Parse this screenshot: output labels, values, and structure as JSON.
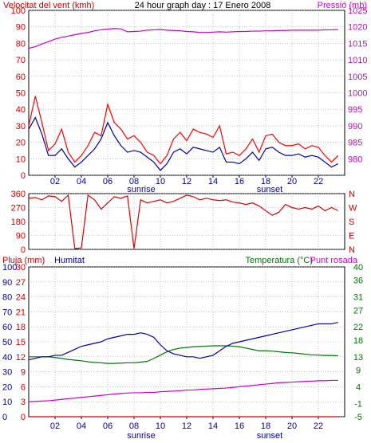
{
  "header": {
    "left_title": "Velocitat del vent (kmh)",
    "center_title": "24 hour graph day : 17 Enero 2008",
    "right_title": "Pressió (mb)"
  },
  "colors": {
    "panel_bg": "#ffffff",
    "border": "#000000",
    "grid": "#a0a0a0",
    "wind_avg": "#0000aa",
    "wind_gust": "#ff0000",
    "pressure": "#cc00cc",
    "direction": "#dd0000",
    "humidity": "#0000aa",
    "temperature": "#007700",
    "dewpoint": "#cc00cc",
    "rain": "#cc0000",
    "left_axis_text": "#cc0000",
    "right_axis_text": "#cc00cc",
    "humidity_text": "#0000aa",
    "temperature_text": "#007700"
  },
  "x_axis": {
    "tick_labels": [
      "02",
      "04",
      "06",
      "08",
      "10",
      "12",
      "14",
      "16",
      "18",
      "20",
      "22"
    ],
    "sunrise_label": "sunrise",
    "sunset_label": "sunset"
  },
  "chart_data": [
    {
      "type": "line",
      "title": "",
      "ylabel": "Velocitat del vent (kmh)",
      "y2label": "Pressió (mb)",
      "ylim": [
        0,
        100
      ],
      "y2lim": [
        975,
        1025
      ],
      "yticks": [
        0,
        10,
        20,
        30,
        40,
        50,
        60,
        70,
        80,
        90,
        100
      ],
      "y2ticks": [
        980,
        985,
        990,
        995,
        1000,
        1005,
        1010,
        1015,
        1020,
        1025
      ],
      "x": [
        0.0,
        0.5,
        1.0,
        1.5,
        2.0,
        2.5,
        3.0,
        3.5,
        4.0,
        4.5,
        5.0,
        5.5,
        6.0,
        6.5,
        7.0,
        7.5,
        8.0,
        8.5,
        9.0,
        9.5,
        10.0,
        10.5,
        11.0,
        11.5,
        12.0,
        12.5,
        13.0,
        13.5,
        14.0,
        14.5,
        15.0,
        15.5,
        16.0,
        16.5,
        17.0,
        17.5,
        18.0,
        18.5,
        19.0,
        19.5,
        20.0,
        20.5,
        21.0,
        21.5,
        22.0,
        22.5,
        23.0,
        23.5
      ],
      "series": [
        {
          "name": "gust",
          "axis": "left",
          "values": [
            30,
            48,
            32,
            15,
            19,
            28,
            14,
            8,
            12,
            18,
            26,
            24,
            43,
            32,
            28,
            22,
            24,
            20,
            14,
            12,
            7,
            12,
            22,
            26,
            21,
            28,
            26,
            25,
            23,
            30,
            13,
            14,
            12,
            16,
            22,
            14,
            24,
            25,
            20,
            18,
            18,
            19,
            16,
            18,
            17,
            12,
            8,
            12
          ]
        },
        {
          "name": "average",
          "axis": "left",
          "values": [
            28,
            35,
            25,
            12,
            12,
            16,
            10,
            5,
            8,
            12,
            16,
            22,
            32,
            24,
            18,
            14,
            15,
            14,
            11,
            8,
            3,
            7,
            14,
            16,
            13,
            17,
            16,
            15,
            14,
            17,
            8,
            8,
            7,
            10,
            14,
            9,
            16,
            17,
            14,
            12,
            12,
            13,
            11,
            12,
            11,
            8,
            5,
            7
          ]
        },
        {
          "name": "pressure",
          "axis": "right",
          "values": [
            1013.5,
            1014,
            1014.8,
            1015.5,
            1016.3,
            1016.8,
            1017.2,
            1017.6,
            1018.0,
            1018.3,
            1018.8,
            1019.1,
            1019.3,
            1019.5,
            1019.4,
            1018.5,
            1018.6,
            1018.7,
            1019.0,
            1019.1,
            1019.2,
            1019.0,
            1018.9,
            1018.8,
            1018.6,
            1018.5,
            1018.3,
            1018.3,
            1018.4,
            1018.5,
            1018.4,
            1018.5,
            1018.6,
            1018.6,
            1018.7,
            1018.7,
            1018.8,
            1018.8,
            1018.9,
            1018.9,
            1019.0,
            1019.0,
            1019.0,
            1019.0,
            1019.0,
            1019.1,
            1019.1,
            1019.2
          ]
        }
      ]
    },
    {
      "type": "line",
      "title": "",
      "ylabel": "",
      "ylim": [
        0,
        360
      ],
      "yticks": [
        0,
        90,
        180,
        270,
        360
      ],
      "y2ticks": [
        "N",
        "E",
        "S",
        "W",
        "N"
      ],
      "x": [
        0.0,
        0.5,
        1.0,
        1.5,
        2.0,
        2.5,
        3.0,
        3.5,
        4.0,
        4.5,
        5.0,
        5.5,
        6.0,
        6.5,
        7.0,
        7.5,
        8.0,
        8.5,
        9.0,
        9.5,
        10.0,
        10.5,
        11.0,
        11.5,
        12.0,
        12.5,
        13.0,
        13.5,
        14.0,
        14.5,
        15.0,
        15.5,
        16.0,
        16.5,
        17.0,
        17.5,
        18.0,
        18.5,
        19.0,
        19.5,
        20.0,
        20.5,
        21.0,
        21.5,
        22.0,
        22.5,
        23.0,
        23.5
      ],
      "series": [
        {
          "name": "direction",
          "values": [
            330,
            335,
            320,
            345,
            340,
            310,
            350,
            5,
            10,
            350,
            320,
            260,
            300,
            340,
            330,
            345,
            5,
            320,
            300,
            310,
            320,
            300,
            310,
            330,
            350,
            340,
            320,
            330,
            320,
            315,
            320,
            305,
            300,
            290,
            300,
            280,
            250,
            220,
            240,
            290,
            270,
            260,
            270,
            260,
            280,
            250,
            270,
            250
          ]
        }
      ]
    },
    {
      "type": "line",
      "title": "",
      "ylabel": "Pluja (mm)",
      "y2label": "Temperatura (°C)",
      "ylim": [
        0,
        30
      ],
      "yticks": [
        0,
        3,
        6,
        9,
        12,
        15,
        18,
        21,
        24,
        27,
        30
      ],
      "humidity_label": "Humitat",
      "humidity_ticks": [
        0,
        10,
        20,
        30,
        40,
        50,
        60,
        70,
        80,
        90,
        100
      ],
      "y2lim": [
        -5,
        40
      ],
      "y2ticks": [
        -5,
        -1,
        4,
        9,
        13,
        18,
        22,
        27,
        31,
        36,
        40
      ],
      "y2ticks_shown": [
        "-5",
        "-1",
        "4",
        "9",
        "13",
        "18",
        "22",
        "27",
        "31",
        "36",
        "40"
      ],
      "dewpoint_label": "Punt rosada",
      "x": [
        0.0,
        0.5,
        1.0,
        1.5,
        2.0,
        2.5,
        3.0,
        3.5,
        4.0,
        4.5,
        5.0,
        5.5,
        6.0,
        6.5,
        7.0,
        7.5,
        8.0,
        8.5,
        9.0,
        9.5,
        10.0,
        10.5,
        11.0,
        11.5,
        12.0,
        12.5,
        13.0,
        13.5,
        14.0,
        14.5,
        15.0,
        15.5,
        16.0,
        16.5,
        17.0,
        17.5,
        18.0,
        18.5,
        19.0,
        19.5,
        20.0,
        20.5,
        21.0,
        21.5,
        22.0,
        22.5,
        23.0,
        23.5
      ],
      "series": [
        {
          "name": "humidity",
          "axis": "humidity",
          "values": [
            38,
            39,
            40,
            40,
            41,
            41,
            43,
            45,
            47,
            48,
            49,
            50,
            52,
            53,
            54,
            55,
            55,
            56,
            55,
            53,
            48,
            44,
            42,
            41,
            40,
            40,
            39,
            40,
            41,
            44,
            47,
            49,
            50,
            51,
            52,
            53,
            54,
            55,
            56,
            57,
            58,
            59,
            60,
            61,
            62,
            62,
            62,
            63
          ]
        },
        {
          "name": "temperature",
          "axis": "temperature",
          "values": [
            13.0,
            13.0,
            13.0,
            13.0,
            12.8,
            12.5,
            12.2,
            12.0,
            11.8,
            11.5,
            11.3,
            11.2,
            11.0,
            11.0,
            11.1,
            11.2,
            11.2,
            11.4,
            11.6,
            12.5,
            13.5,
            14.5,
            15.2,
            15.6,
            15.8,
            16.0,
            16.1,
            16.2,
            16.3,
            16.3,
            16.3,
            16.2,
            16.0,
            15.6,
            15.2,
            14.8,
            14.8,
            14.7,
            14.5,
            14.3,
            14.2,
            14.0,
            13.8,
            13.6,
            13.5,
            13.4,
            13.4,
            13.3
          ]
        },
        {
          "name": "dewpoint",
          "axis": "temperature",
          "values": [
            -0.5,
            -0.4,
            -0.3,
            -0.2,
            0.0,
            0.2,
            0.4,
            0.6,
            0.8,
            1.0,
            1.2,
            1.4,
            1.6,
            1.8,
            2.0,
            2.1,
            2.2,
            2.2,
            2.3,
            2.3,
            2.5,
            2.6,
            2.7,
            2.8,
            3.0,
            3.0,
            3.2,
            3.3,
            3.4,
            3.5,
            3.6,
            3.8,
            4.0,
            4.2,
            4.4,
            4.6,
            4.8,
            5.0,
            5.2,
            5.3,
            5.4,
            5.5,
            5.6,
            5.7,
            5.8,
            5.8,
            5.9,
            5.9
          ]
        },
        {
          "name": "rain",
          "axis": "left",
          "values": [
            0,
            0,
            0,
            0,
            0,
            0,
            0,
            0,
            0,
            0,
            0,
            0,
            0,
            0,
            0,
            0,
            0,
            0,
            0,
            0,
            0,
            0,
            0,
            0,
            0,
            0,
            0,
            0,
            0,
            0,
            0,
            0,
            0,
            0,
            0,
            0,
            0,
            0,
            0,
            0,
            0,
            0,
            0,
            0,
            0,
            0,
            0,
            0
          ]
        }
      ]
    }
  ]
}
